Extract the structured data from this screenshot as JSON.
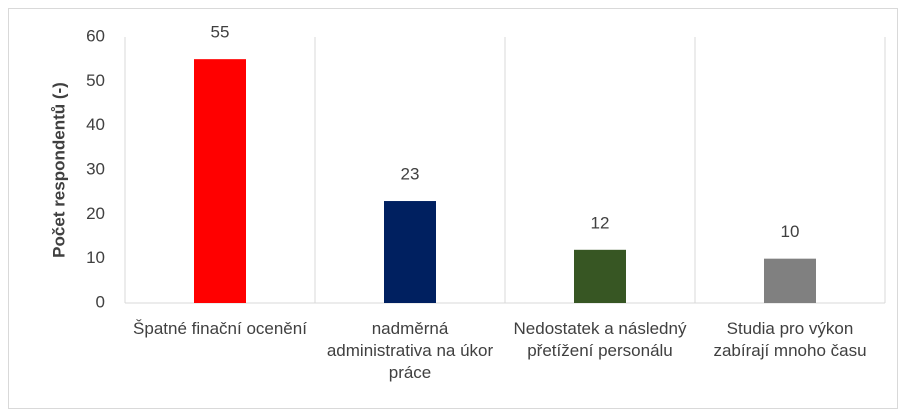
{
  "chart_data": {
    "type": "bar",
    "y_label": "Počet respondentů (-)",
    "categories": [
      "Špatné finační ocenění",
      "nadměrná administrativa na úkor práce",
      "Nedostatek a následný přetížení personálu",
      "Studia pro výkon zabírají mnoho času"
    ],
    "values": [
      55,
      23,
      12,
      10
    ],
    "colors": [
      "#ff0000",
      "#002060",
      "#375623",
      "#808080"
    ],
    "ylim": [
      0,
      60
    ],
    "yticks": [
      0,
      10,
      20,
      30,
      40,
      50,
      60
    ]
  }
}
